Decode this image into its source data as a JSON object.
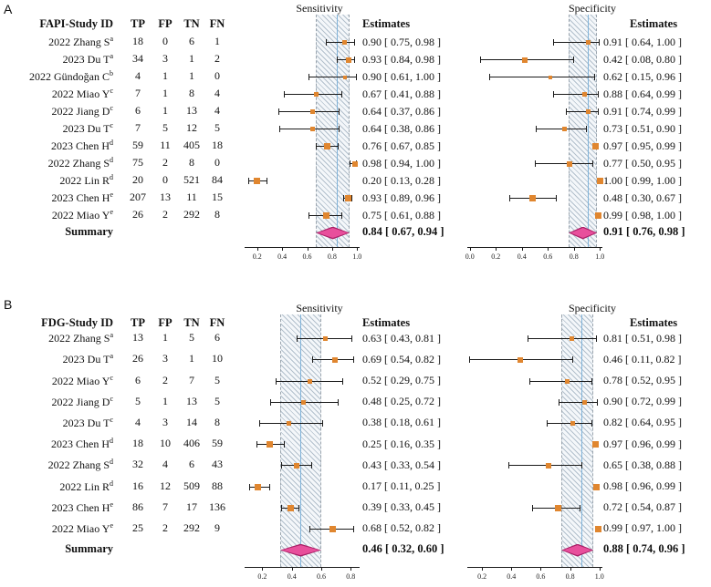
{
  "colors": {
    "summary_line": "#7fb2d9",
    "band_border": "#9aa4ad",
    "hatch_line": "#b3c0cc",
    "hatch_bg": "#f4f7fa",
    "ci_line": "#1a1a1a",
    "study_marker": "#e0862f",
    "summary_diamond": "#e84f9c",
    "summary_diamond_border": "#a81f66"
  },
  "chart_data": [
    {
      "type": "forest",
      "panel_label": "A",
      "id_header": "FAPI-Study ID",
      "count_headers": [
        "TP",
        "FP",
        "TN",
        "FN"
      ],
      "summary_row_label": "Summary",
      "plots": {
        "sensitivity": {
          "title": "Sensitivity",
          "estimates_header": "Estimates",
          "xlim": [
            0.1,
            1.02
          ],
          "ticks": [
            "0.2",
            "0.4",
            "0.6",
            "0.8",
            "1.0"
          ],
          "summary": {
            "est": 0.84,
            "lo": 0.67,
            "hi": 0.94
          }
        },
        "specificity": {
          "title": "Specificity",
          "estimates_header": "Estimates",
          "xlim": [
            -0.02,
            1.02
          ],
          "ticks": [
            "0.0",
            "0.2",
            "0.4",
            "0.6",
            "0.8",
            "1.0"
          ],
          "summary": {
            "est": 0.91,
            "lo": 0.76,
            "hi": 0.98
          }
        }
      },
      "studies": [
        {
          "id": "2022 Zhang S",
          "sup": "a",
          "tp": 18,
          "fp": 0,
          "tn": 6,
          "fn": 1,
          "sens": {
            "est": 0.9,
            "lo": 0.75,
            "hi": 0.98
          },
          "spec": {
            "est": 0.91,
            "lo": 0.64,
            "hi": 1.0
          }
        },
        {
          "id": "2023 Du T",
          "sup": "a",
          "tp": 34,
          "fp": 3,
          "tn": 1,
          "fn": 2,
          "sens": {
            "est": 0.93,
            "lo": 0.84,
            "hi": 0.98
          },
          "spec": {
            "est": 0.42,
            "lo": 0.08,
            "hi": 0.8
          }
        },
        {
          "id": "2022 Gündoğan C",
          "sup": "b",
          "tp": 4,
          "fp": 1,
          "tn": 1,
          "fn": 0,
          "sens": {
            "est": 0.9,
            "lo": 0.61,
            "hi": 1.0
          },
          "spec": {
            "est": 0.62,
            "lo": 0.15,
            "hi": 0.96
          }
        },
        {
          "id": "2022 Miao Y",
          "sup": "c",
          "tp": 7,
          "fp": 1,
          "tn": 8,
          "fn": 4,
          "sens": {
            "est": 0.67,
            "lo": 0.41,
            "hi": 0.88
          },
          "spec": {
            "est": 0.88,
            "lo": 0.64,
            "hi": 0.99
          }
        },
        {
          "id": "2022 Jiang D",
          "sup": "c",
          "tp": 6,
          "fp": 1,
          "tn": 13,
          "fn": 4,
          "sens": {
            "est": 0.64,
            "lo": 0.37,
            "hi": 0.86
          },
          "spec": {
            "est": 0.91,
            "lo": 0.74,
            "hi": 0.99
          }
        },
        {
          "id": "2023 Du T",
          "sup": "c",
          "tp": 7,
          "fp": 5,
          "tn": 12,
          "fn": 5,
          "sens": {
            "est": 0.64,
            "lo": 0.38,
            "hi": 0.86
          },
          "spec": {
            "est": 0.73,
            "lo": 0.51,
            "hi": 0.9
          }
        },
        {
          "id": "2023 Chen H",
          "sup": "d",
          "tp": 59,
          "fp": 11,
          "tn": 405,
          "fn": 18,
          "sens": {
            "est": 0.76,
            "lo": 0.67,
            "hi": 0.85
          },
          "spec": {
            "est": 0.97,
            "lo": 0.95,
            "hi": 0.99
          }
        },
        {
          "id": "2022 Zhang S",
          "sup": "d",
          "tp": 75,
          "fp": 2,
          "tn": 8,
          "fn": 0,
          "sens": {
            "est": 0.98,
            "lo": 0.94,
            "hi": 1.0
          },
          "spec": {
            "est": 0.77,
            "lo": 0.5,
            "hi": 0.95
          }
        },
        {
          "id": "2022 Lin R",
          "sup": "d",
          "tp": 20,
          "fp": 0,
          "tn": 521,
          "fn": 84,
          "sens": {
            "est": 0.2,
            "lo": 0.13,
            "hi": 0.28
          },
          "spec": {
            "est": 1.0,
            "lo": 0.99,
            "hi": 1.0
          }
        },
        {
          "id": "2023 Chen H",
          "sup": "e",
          "tp": 207,
          "fp": 13,
          "tn": 11,
          "fn": 15,
          "sens": {
            "est": 0.93,
            "lo": 0.89,
            "hi": 0.96
          },
          "spec": {
            "est": 0.48,
            "lo": 0.3,
            "hi": 0.67
          }
        },
        {
          "id": "2022 Miao Y",
          "sup": "e",
          "tp": 26,
          "fp": 2,
          "tn": 292,
          "fn": 8,
          "sens": {
            "est": 0.75,
            "lo": 0.61,
            "hi": 0.88
          },
          "spec": {
            "est": 0.99,
            "lo": 0.98,
            "hi": 1.0
          }
        }
      ]
    },
    {
      "type": "forest",
      "panel_label": "B",
      "id_header": "FDG-Study ID",
      "count_headers": [
        "TP",
        "FP",
        "TN",
        "FN"
      ],
      "summary_row_label": "Summary",
      "plots": {
        "sensitivity": {
          "title": "Sensitivity",
          "estimates_header": "Estimates",
          "xlim": [
            0.08,
            0.86
          ],
          "ticks": [
            "0.2",
            "0.4",
            "0.6",
            "0.8"
          ],
          "summary": {
            "est": 0.46,
            "lo": 0.32,
            "hi": 0.6
          }
        },
        "specificity": {
          "title": "Specificity",
          "estimates_header": "Estimates",
          "xlim": [
            0.1,
            1.02
          ],
          "ticks": [
            "0.2",
            "0.4",
            "0.6",
            "0.8",
            "1.0"
          ],
          "summary": {
            "est": 0.88,
            "lo": 0.74,
            "hi": 0.96
          }
        }
      },
      "studies": [
        {
          "id": "2022 Zhang S",
          "sup": "a",
          "tp": 13,
          "fp": 1,
          "tn": 5,
          "fn": 6,
          "sens": {
            "est": 0.63,
            "lo": 0.43,
            "hi": 0.81
          },
          "spec": {
            "est": 0.81,
            "lo": 0.51,
            "hi": 0.98
          }
        },
        {
          "id": "2023 Du T",
          "sup": "a",
          "tp": 26,
          "fp": 3,
          "tn": 1,
          "fn": 10,
          "sens": {
            "est": 0.69,
            "lo": 0.54,
            "hi": 0.82
          },
          "spec": {
            "est": 0.46,
            "lo": 0.11,
            "hi": 0.82
          }
        },
        {
          "id": "2022 Miao Y",
          "sup": "c",
          "tp": 6,
          "fp": 2,
          "tn": 7,
          "fn": 5,
          "sens": {
            "est": 0.52,
            "lo": 0.29,
            "hi": 0.75
          },
          "spec": {
            "est": 0.78,
            "lo": 0.52,
            "hi": 0.95
          }
        },
        {
          "id": "2022 Jiang D",
          "sup": "c",
          "tp": 5,
          "fp": 1,
          "tn": 13,
          "fn": 5,
          "sens": {
            "est": 0.48,
            "lo": 0.25,
            "hi": 0.72
          },
          "spec": {
            "est": 0.9,
            "lo": 0.72,
            "hi": 0.99
          }
        },
        {
          "id": "2023 Du T",
          "sup": "c",
          "tp": 4,
          "fp": 3,
          "tn": 14,
          "fn": 8,
          "sens": {
            "est": 0.38,
            "lo": 0.18,
            "hi": 0.61
          },
          "spec": {
            "est": 0.82,
            "lo": 0.64,
            "hi": 0.95
          }
        },
        {
          "id": "2023 Chen H",
          "sup": "d",
          "tp": 18,
          "fp": 10,
          "tn": 406,
          "fn": 59,
          "sens": {
            "est": 0.25,
            "lo": 0.16,
            "hi": 0.35
          },
          "spec": {
            "est": 0.97,
            "lo": 0.96,
            "hi": 0.99
          }
        },
        {
          "id": "2022 Zhang S",
          "sup": "d",
          "tp": 32,
          "fp": 4,
          "tn": 6,
          "fn": 43,
          "sens": {
            "est": 0.43,
            "lo": 0.33,
            "hi": 0.54
          },
          "spec": {
            "est": 0.65,
            "lo": 0.38,
            "hi": 0.88
          }
        },
        {
          "id": "2022 Lin R",
          "sup": "d",
          "tp": 16,
          "fp": 12,
          "tn": 509,
          "fn": 88,
          "sens": {
            "est": 0.17,
            "lo": 0.11,
            "hi": 0.25
          },
          "spec": {
            "est": 0.98,
            "lo": 0.96,
            "hi": 0.99
          }
        },
        {
          "id": "2023 Chen H",
          "sup": "e",
          "tp": 86,
          "fp": 7,
          "tn": 17,
          "fn": 136,
          "sens": {
            "est": 0.39,
            "lo": 0.33,
            "hi": 0.45
          },
          "spec": {
            "est": 0.72,
            "lo": 0.54,
            "hi": 0.87
          }
        },
        {
          "id": "2022 Miao Y",
          "sup": "e",
          "tp": 25,
          "fp": 2,
          "tn": 292,
          "fn": 9,
          "sens": {
            "est": 0.68,
            "lo": 0.52,
            "hi": 0.82
          },
          "spec": {
            "est": 0.99,
            "lo": 0.97,
            "hi": 1.0
          }
        }
      ]
    }
  ]
}
